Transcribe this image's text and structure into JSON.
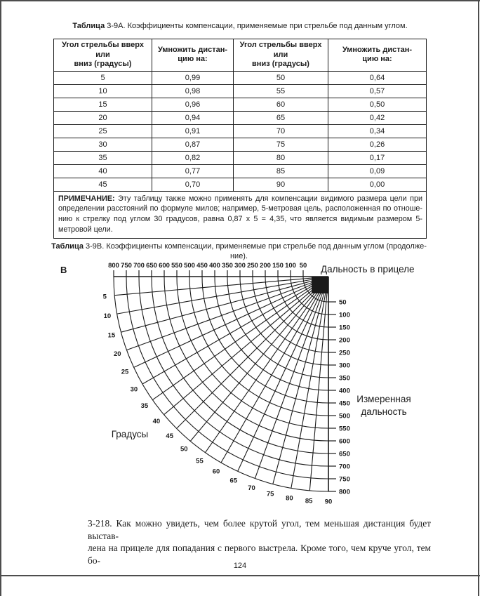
{
  "colors": {
    "text": "#1c1c1c",
    "line": "#1a1a1a",
    "frame": "#4d4d4d"
  },
  "table_a": {
    "title_bold": "Таблица",
    "title_rest": " 3-9А. Коэффициенты компенсации, применяемые при стрельбе под данным углом.",
    "headers": [
      "Угол стрельбы вверх или\nвниз (градусы)",
      "Умножить дистан-\nцию на:",
      "Угол стрельбы вверх или\nвниз (градусы)",
      "Умножить дистан-\nцию на:"
    ],
    "rows": [
      [
        "5",
        "0,99",
        "50",
        "0,64"
      ],
      [
        "10",
        "0,98",
        "55",
        "0,57"
      ],
      [
        "15",
        "0,96",
        "60",
        "0,50"
      ],
      [
        "20",
        "0,94",
        "65",
        "0,42"
      ],
      [
        "25",
        "0,91",
        "70",
        "0,34"
      ],
      [
        "30",
        "0,87",
        "75",
        "0,26"
      ],
      [
        "35",
        "0,82",
        "80",
        "0,17"
      ],
      [
        "40",
        "0,77",
        "85",
        "0,09"
      ],
      [
        "45",
        "0,70",
        "90",
        "0,00"
      ]
    ],
    "note_label": "ПРИМЕЧАНИЕ:",
    "note_lines": [
      "Эту таблицу также можно применять для компенсации видимого размера цели при",
      "определении расстояний по формуле милов; например, 5-метровая цель, расположенная по отноше-",
      "нию к стрелку под углом 30 градусов, равна 0,87 x 5 = 4,35, что является видимым размером 5-",
      "метровой цели."
    ]
  },
  "table_b_title": {
    "bold": "Таблица",
    "line1_rest": " 3-9В. Коэффициенты компенсации, применяемые при стрельбе под данным углом (продолже-",
    "line2": "ние)."
  },
  "chart_data": {
    "type": "polar-grid",
    "figure_letter": "В",
    "top_axis_label": "Дальность в прицеле",
    "right_axis_label_lines": [
      "Измеренная",
      "дальность"
    ],
    "angle_axis_label": "Градусы",
    "top_scale": [
      800,
      750,
      700,
      650,
      600,
      550,
      500,
      450,
      400,
      350,
      300,
      250,
      200,
      150,
      100,
      50
    ],
    "right_scale": [
      50,
      100,
      150,
      200,
      250,
      300,
      350,
      400,
      450,
      500,
      550,
      600,
      650,
      700,
      750,
      800
    ],
    "degree_labels": [
      5,
      10,
      15,
      20,
      25,
      30,
      35,
      40,
      45,
      50,
      55,
      60,
      65,
      70,
      75,
      80,
      85,
      90
    ],
    "range_min": 50,
    "range_max": 800,
    "range_step": 50,
    "degree_step": 5
  },
  "paragraph": {
    "lines": [
      "3-218. Как можно увидеть, чем более крутой угол, тем меньшая дистанция будет выстав-",
      "лена на прицеле для попадания с первого выстрела. Кроме того, чем круче угол, тем бо-"
    ]
  },
  "page": {
    "number": "124"
  }
}
